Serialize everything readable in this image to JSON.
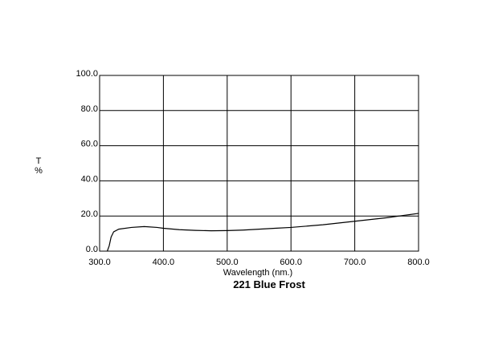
{
  "chart_data": {
    "type": "line",
    "title": "221 Blue Frost",
    "xlabel": "Wavelength (nm.)",
    "ylabel": [
      "T",
      "%"
    ],
    "x": [
      312,
      315,
      318,
      322,
      330,
      350,
      370,
      390,
      400,
      425,
      450,
      475,
      500,
      525,
      550,
      575,
      600,
      650,
      700,
      750,
      800
    ],
    "series": [
      {
        "color": "#000000",
        "values": [
          0,
          3,
          8,
          11,
          12.5,
          13.5,
          14,
          13.5,
          13,
          12.2,
          11.8,
          11.6,
          11.7,
          12,
          12.5,
          13,
          13.5,
          15,
          17,
          19,
          21.5
        ]
      }
    ],
    "xlim": [
      300,
      800
    ],
    "ylim": [
      0,
      100
    ],
    "xticks": [
      {
        "value": 300,
        "label": "300.0"
      },
      {
        "value": 400,
        "label": "400.0"
      },
      {
        "value": 500,
        "label": "500.0"
      },
      {
        "value": 600,
        "label": "600.0"
      },
      {
        "value": 700,
        "label": "700.0"
      },
      {
        "value": 800,
        "label": "800.0"
      }
    ],
    "yticks": [
      {
        "value": 0,
        "label": "0.0"
      },
      {
        "value": 20,
        "label": "20.0"
      },
      {
        "value": 40,
        "label": "40.0"
      },
      {
        "value": 60,
        "label": "60.0"
      },
      {
        "value": 80,
        "label": "80.0"
      },
      {
        "value": 100,
        "label": "100.0"
      }
    ],
    "grid": true
  }
}
